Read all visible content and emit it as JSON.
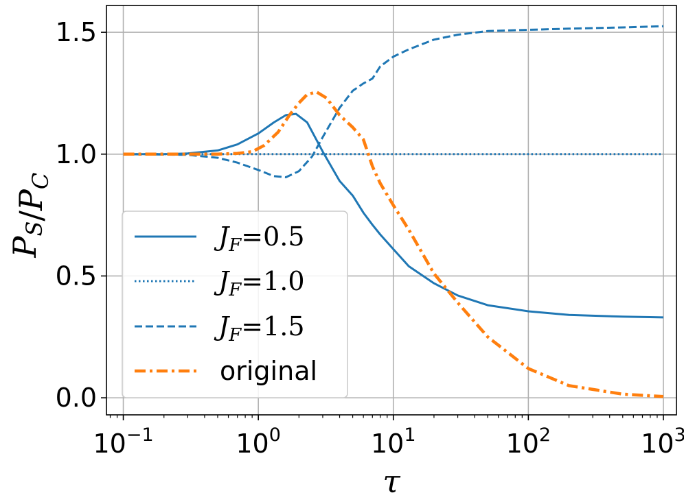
{
  "chart_data": {
    "type": "line",
    "xscale": "log",
    "xlim": [
      0.075,
      1250
    ],
    "ylim": [
      -0.07,
      1.61
    ],
    "grid": true,
    "legend_position": "lower-left",
    "xlabel": "τ",
    "ylabel": "P_S/P_C",
    "x_ticks": [
      0.1,
      1,
      10,
      100,
      1000
    ],
    "x_tick_labels": [
      {
        "base": "10",
        "exp": "−1"
      },
      {
        "base": "10",
        "exp": "0"
      },
      {
        "base": "10",
        "exp": "1"
      },
      {
        "base": "10",
        "exp": "2"
      },
      {
        "base": "10",
        "exp": "3"
      }
    ],
    "y_ticks": [
      0.0,
      0.5,
      1.0,
      1.5
    ],
    "y_tick_labels": [
      "0.0",
      "0.5",
      "1.0",
      "1.5"
    ],
    "series": [
      {
        "name": "J_F=0.5",
        "label_var": "J",
        "label_sub": "F",
        "label_val": "=0.5",
        "color": "#1f77b4",
        "style": "solid",
        "x": [
          0.1,
          0.2,
          0.3,
          0.5,
          0.7,
          1.0,
          1.3,
          1.6,
          1.9,
          2.3,
          3.0,
          4.0,
          5.0,
          6.0,
          7.0,
          8.0,
          10,
          13,
          20,
          30,
          50,
          100,
          200,
          500,
          1000
        ],
        "y": [
          1.0,
          1.0,
          1.003,
          1.015,
          1.04,
          1.085,
          1.13,
          1.16,
          1.165,
          1.13,
          1.01,
          0.89,
          0.83,
          0.76,
          0.71,
          0.67,
          0.61,
          0.54,
          0.47,
          0.42,
          0.38,
          0.355,
          0.34,
          0.333,
          0.33
        ]
      },
      {
        "name": "J_F=1.0",
        "label_var": "J",
        "label_sub": "F",
        "label_val": "=1.0",
        "color": "#1f77b4",
        "style": "dotted",
        "x": [
          0.1,
          1000
        ],
        "y": [
          1.0,
          1.0
        ]
      },
      {
        "name": "J_F=1.5",
        "label_var": "J",
        "label_sub": "F",
        "label_val": "=1.5",
        "color": "#1f77b4",
        "style": "dashed",
        "x": [
          0.1,
          0.3,
          0.5,
          0.7,
          1.0,
          1.3,
          1.6,
          2.0,
          2.5,
          3.0,
          4.0,
          5.0,
          6.0,
          7.0,
          8.0,
          10,
          13,
          20,
          30,
          50,
          100,
          200,
          500,
          1000
        ],
        "y": [
          1.0,
          0.997,
          0.985,
          0.965,
          0.935,
          0.91,
          0.905,
          0.93,
          0.99,
          1.07,
          1.19,
          1.26,
          1.29,
          1.31,
          1.36,
          1.4,
          1.43,
          1.47,
          1.49,
          1.505,
          1.51,
          1.515,
          1.52,
          1.525
        ]
      },
      {
        "name": "original",
        "label_text": "original",
        "color": "#ff7f0e",
        "style": "dashdot",
        "x": [
          0.1,
          0.3,
          0.5,
          0.7,
          0.9,
          1.1,
          1.4,
          1.7,
          2.0,
          2.3,
          2.7,
          3.2,
          4.0,
          5.0,
          6.0,
          7.0,
          8.0,
          10,
          13,
          20,
          30,
          50,
          100,
          200,
          500,
          1000
        ],
        "y": [
          1.0,
          1.0,
          1.0,
          1.003,
          1.01,
          1.035,
          1.09,
          1.16,
          1.21,
          1.245,
          1.255,
          1.23,
          1.16,
          1.11,
          1.06,
          0.95,
          0.88,
          0.79,
          0.69,
          0.51,
          0.39,
          0.25,
          0.12,
          0.05,
          0.015,
          0.005
        ]
      }
    ]
  }
}
